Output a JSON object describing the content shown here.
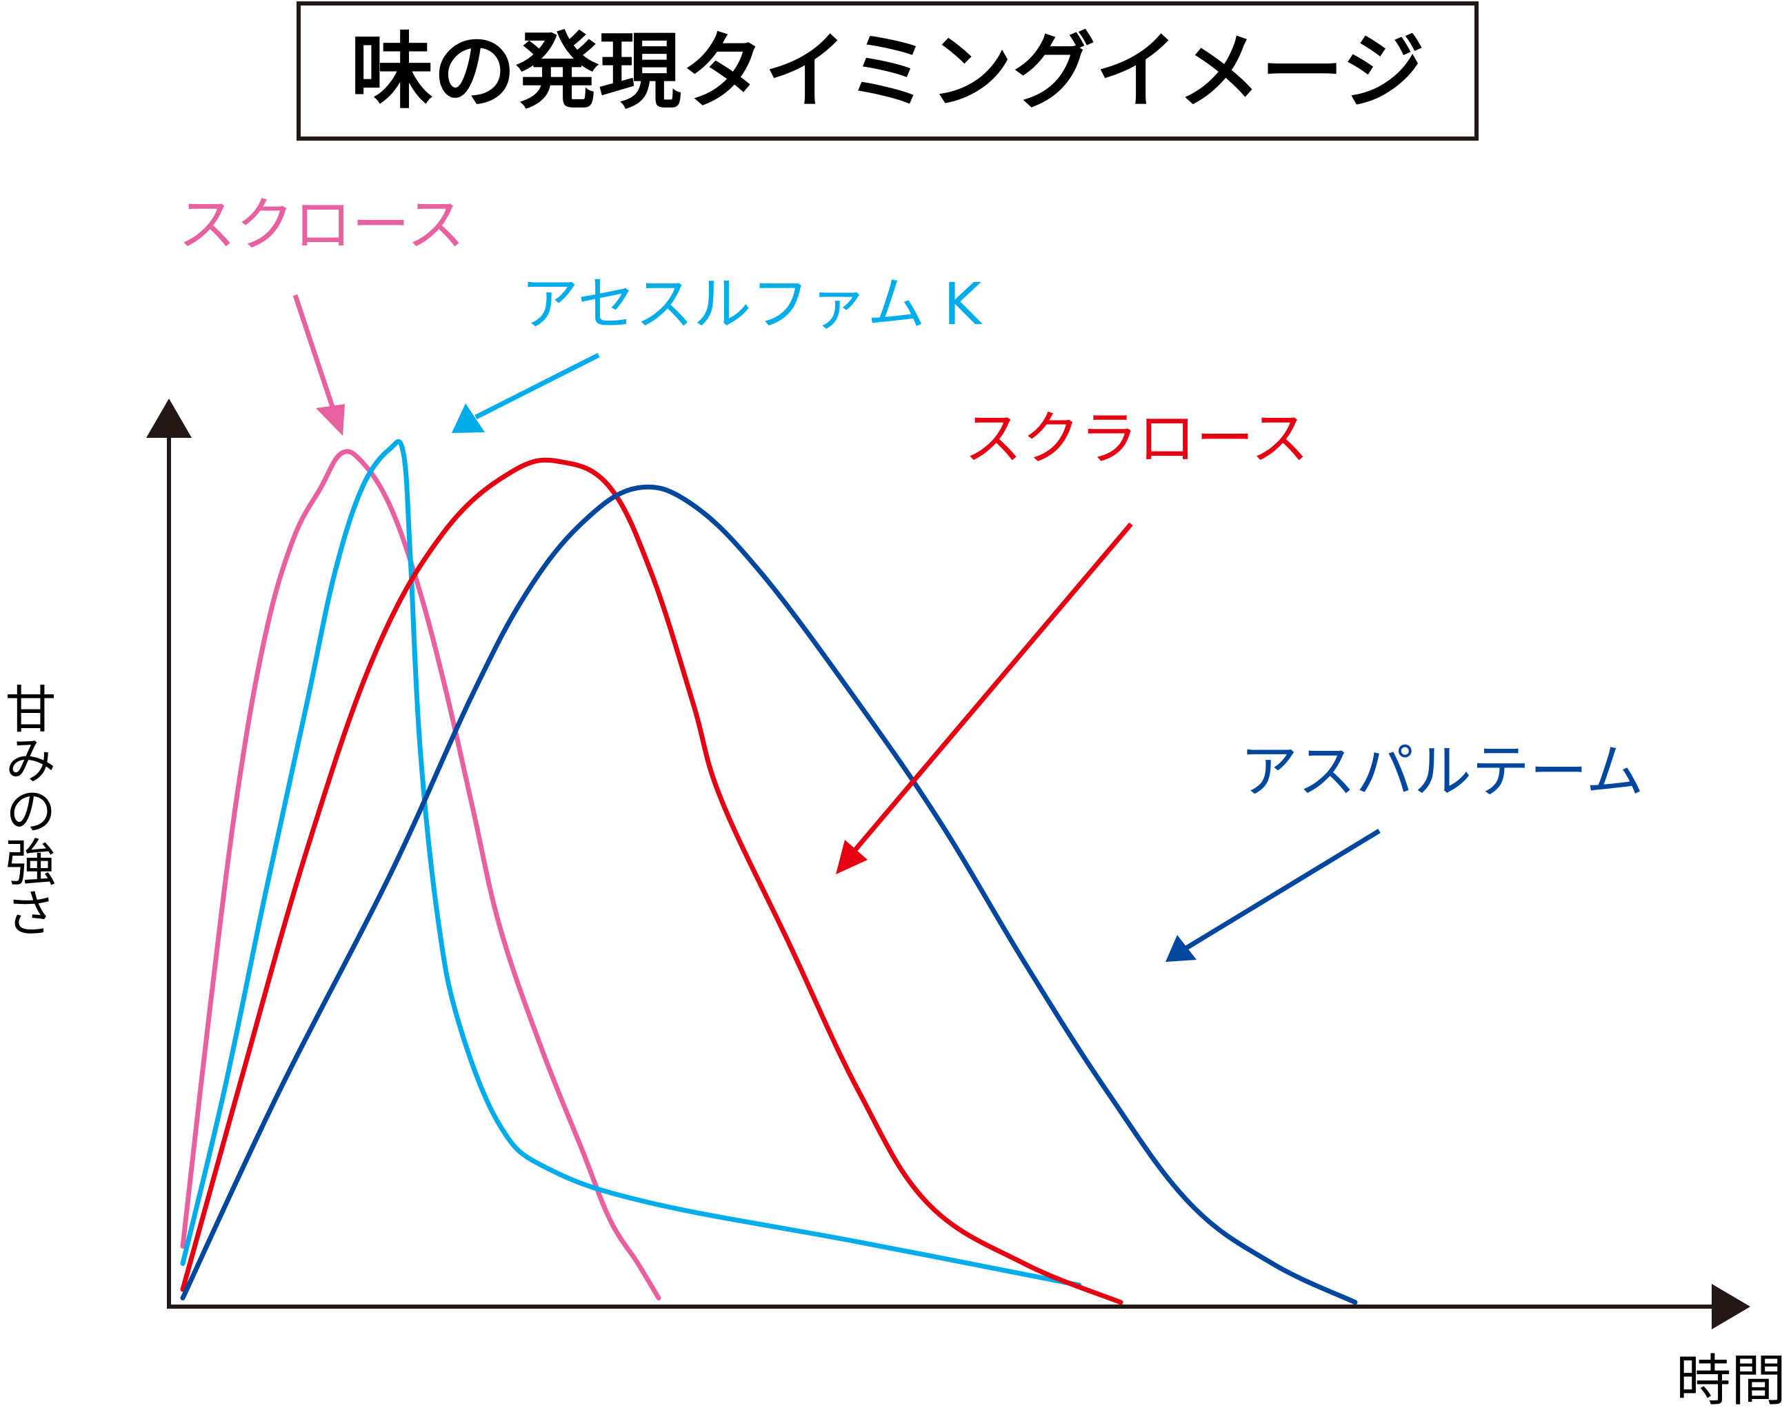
{
  "chart_data": {
    "type": "line",
    "title": "味の発現タイミングイメージ",
    "xlabel": "時間",
    "ylabel": "甘みの強さ",
    "xlim": [
      0,
      100
    ],
    "ylim": [
      0,
      100
    ],
    "grid": false,
    "colors": {
      "axis": "#231815",
      "text": "#000000",
      "sucrose": "#e8609f",
      "acesulfame": "#00ace9",
      "sucralose": "#e50012",
      "aspartame": "#00479d"
    },
    "series": [
      {
        "name": "スクロース",
        "key": "sucrose",
        "points": [
          [
            1,
            7
          ],
          [
            3,
            35
          ],
          [
            5,
            60
          ],
          [
            7,
            78
          ],
          [
            9,
            89
          ],
          [
            11,
            95
          ],
          [
            12.5,
            99
          ],
          [
            14,
            98
          ],
          [
            16,
            93
          ],
          [
            18,
            84
          ],
          [
            20,
            72
          ],
          [
            22,
            58
          ],
          [
            24,
            44
          ],
          [
            27,
            30
          ],
          [
            30,
            18
          ],
          [
            32,
            10
          ],
          [
            34,
            5
          ],
          [
            35.5,
            1
          ]
        ]
      },
      {
        "name": "アセスルファム K",
        "key": "acesulfame",
        "points": [
          [
            1,
            5
          ],
          [
            4,
            25
          ],
          [
            7,
            48
          ],
          [
            10,
            70
          ],
          [
            12,
            85
          ],
          [
            14,
            95
          ],
          [
            16,
            99.5
          ],
          [
            17,
            99
          ],
          [
            17.5,
            87
          ],
          [
            18.2,
            65
          ],
          [
            19.5,
            45
          ],
          [
            21,
            33
          ],
          [
            24,
            21
          ],
          [
            27.5,
            16
          ],
          [
            35,
            12
          ],
          [
            50,
            7.5
          ],
          [
            66,
            2.5
          ]
        ]
      },
      {
        "name": "スクラロース",
        "key": "sucralose",
        "points": [
          [
            1,
            2
          ],
          [
            5,
            25
          ],
          [
            10,
            53
          ],
          [
            15,
            76
          ],
          [
            20,
            90
          ],
          [
            25,
            97
          ],
          [
            28.5,
            98
          ],
          [
            32,
            95
          ],
          [
            35,
            85
          ],
          [
            38,
            70
          ],
          [
            40,
            59
          ],
          [
            45,
            42
          ],
          [
            50,
            25
          ],
          [
            55,
            12
          ],
          [
            62,
            5
          ],
          [
            69,
            0.5
          ]
        ]
      },
      {
        "name": "アスパルテーム",
        "key": "aspartame",
        "points": [
          [
            1,
            1
          ],
          [
            8,
            25
          ],
          [
            16,
            50
          ],
          [
            22,
            71
          ],
          [
            26,
            83
          ],
          [
            30,
            91
          ],
          [
            34,
            95
          ],
          [
            38,
            93
          ],
          [
            43,
            85
          ],
          [
            50,
            70
          ],
          [
            56,
            56
          ],
          [
            62,
            40
          ],
          [
            68,
            25
          ],
          [
            74,
            12
          ],
          [
            80,
            5
          ],
          [
            86,
            0.5
          ]
        ]
      }
    ]
  }
}
